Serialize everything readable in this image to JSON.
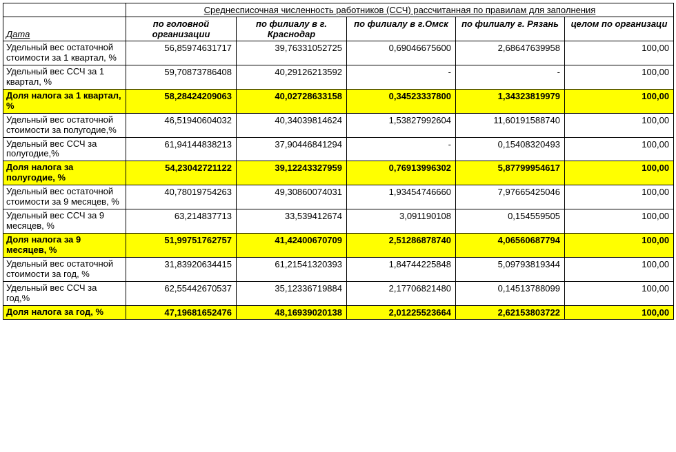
{
  "header_title": "Среднесписочная численность работников (ССЧ) рассчитанная по правилам для заполнения",
  "date_label": "Дата",
  "columns": [
    "по головной организации",
    "по филиалу в г. Краснодар",
    "по филиалу в г.Омск",
    "по филиалу  г. Рязань",
    "целом по организаци"
  ],
  "rows": [
    {
      "label": "Удельный вес остаточной стоимости за 1 квартал, %",
      "hl": false,
      "values": [
        "56,85974631717",
        "39,76331052725",
        "0,69046675600",
        "2,68647639958",
        "100,00"
      ]
    },
    {
      "label": "Удельный вес ССЧ за 1 квартал, %",
      "hl": false,
      "values": [
        "59,70873786408",
        "40,29126213592",
        "-",
        "-",
        "100,00"
      ]
    },
    {
      "label": "Доля налога за 1 квартал, %",
      "hl": true,
      "values": [
        "58,28424209063",
        "40,02728633158",
        "0,34523337800",
        "1,34323819979",
        "100,00"
      ]
    },
    {
      "label": "Удельный вес остаточной стоимости за полугодие,%",
      "hl": false,
      "values": [
        "46,51940604032",
        "40,34039814624",
        "1,53827992604",
        "11,60191588740",
        "100,00"
      ]
    },
    {
      "label": "Удельный вес ССЧ за полугодие,%",
      "hl": false,
      "values": [
        "61,94144838213",
        "37,90446841294",
        "-",
        "0,15408320493",
        "100,00"
      ]
    },
    {
      "label": "Доля налога за полугодие, %",
      "hl": true,
      "values": [
        "54,23042721122",
        "39,12243327959",
        "0,76913996302",
        "5,87799954617",
        "100,00"
      ]
    },
    {
      "label": "Удельный вес остаточной стоимости за 9 месяцев, %",
      "hl": false,
      "values": [
        "40,78019754263",
        "49,30860074031",
        "1,93454746660",
        "7,97665425046",
        "100,00"
      ]
    },
    {
      "label": "Удельный вес ССЧ за 9 месяцев, %",
      "hl": false,
      "values": [
        "63,214837713",
        "33,539412674",
        "3,091190108",
        "0,154559505",
        "100,00"
      ]
    },
    {
      "label": "Доля налога за 9 месяцев, %",
      "hl": true,
      "values": [
        "51,99751762757",
        "41,42400670709",
        "2,51286878740",
        "4,06560687794",
        "100,00"
      ]
    },
    {
      "label": "Удельный вес остаточной стоимости за год, %",
      "hl": false,
      "values": [
        "31,83920634415",
        "61,21541320393",
        "1,84744225848",
        "5,09793819344",
        "100,00"
      ]
    },
    {
      "label": "Удельный вес ССЧ за год,%",
      "hl": false,
      "values": [
        "62,55442670537",
        "35,12336719884",
        "2,17706821480",
        "0,14513788099",
        "100,00"
      ]
    },
    {
      "label": "Доля налога за год, %",
      "hl": true,
      "values": [
        "47,19681652476",
        "48,16939020138",
        "2,01225523664",
        "2,62153803722",
        "100,00"
      ]
    }
  ]
}
